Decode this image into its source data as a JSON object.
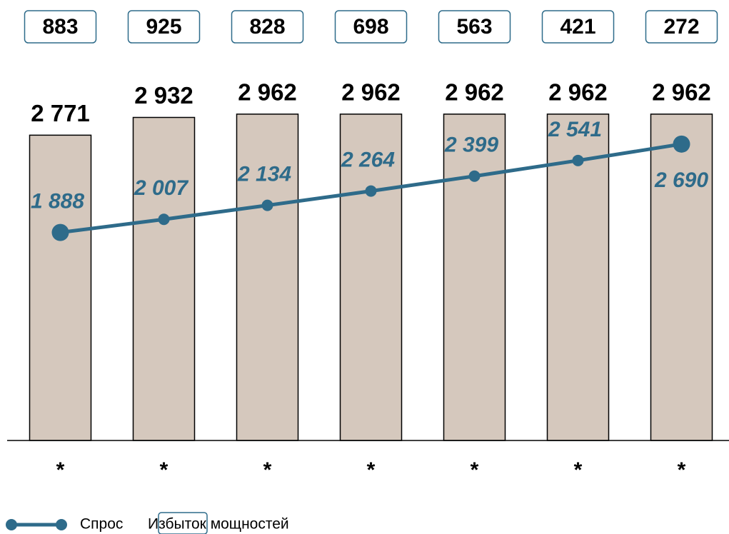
{
  "chart_data": {
    "type": "bar",
    "categories": [
      "*",
      "*",
      "*",
      "*",
      "*",
      "*",
      "*"
    ],
    "ylim": [
      0,
      3000
    ],
    "series": [
      {
        "type": "bar",
        "color": "#d5c8bd",
        "values": [
          2771,
          2932,
          2962,
          2962,
          2962,
          2962,
          2962
        ],
        "value_labels": [
          "2 771",
          "2 932",
          "2 962",
          "2 962",
          "2 962",
          "2 962",
          "2 962"
        ]
      },
      {
        "type": "line",
        "name": "Спрос",
        "color": "#2e6b8a",
        "values": [
          1888,
          2007,
          2134,
          2264,
          2399,
          2541,
          2690
        ],
        "value_labels": [
          "1 888",
          "2 007",
          "2 134",
          "2 264",
          "2 399",
          "2 541",
          "2 690"
        ]
      },
      {
        "type": "box",
        "name": "Избыток мощностей",
        "color": "#2e6b8a",
        "values": [
          883,
          925,
          828,
          698,
          563,
          421,
          272
        ]
      }
    ]
  }
}
